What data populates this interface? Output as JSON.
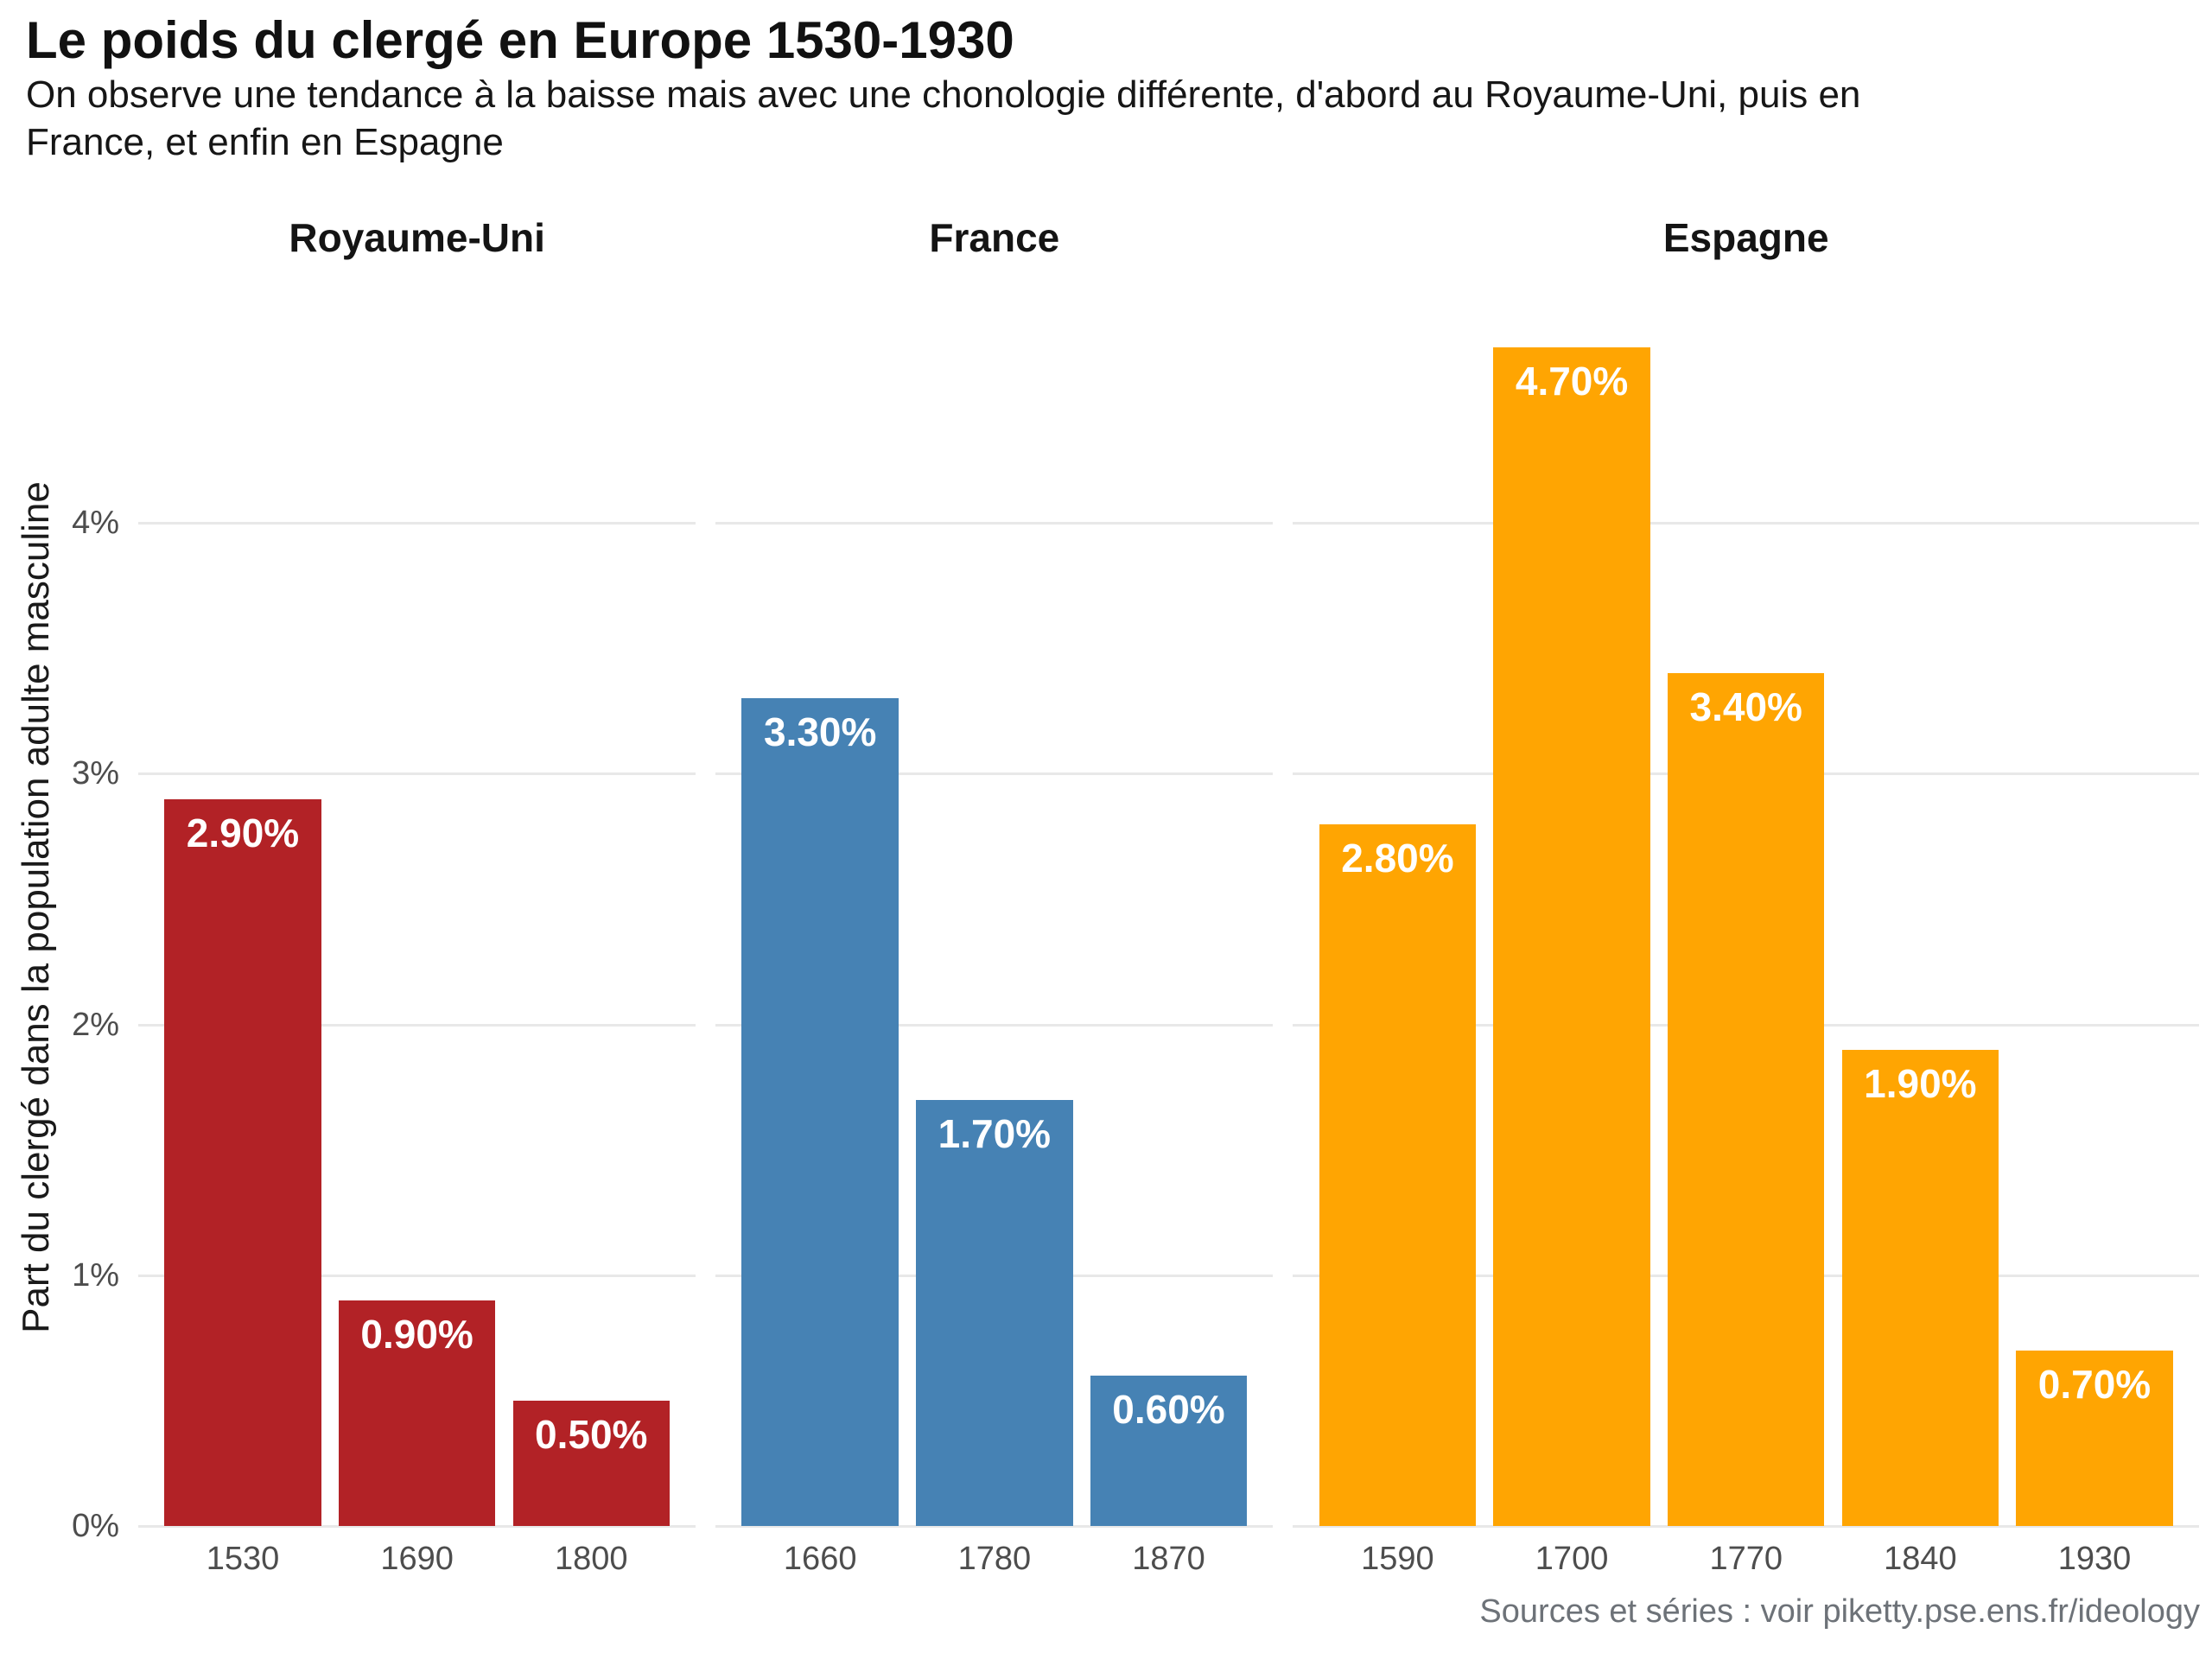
{
  "header": {
    "title": "Le poids du clergé en Europe 1530-1930",
    "subtitle_lines": [
      "On observe une tendance à la baisse mais avec une chonologie différente, d'abord au Royaume-Uni, puis en",
      "France, et enfin en Espagne"
    ]
  },
  "footer": {
    "source": "Sources et séries : voir piketty.pse.ens.fr/ideology"
  },
  "chart_data": {
    "type": "bar",
    "title": "Le poids du clergé en Europe 1530-1930",
    "subtitle": "On observe une tendance à la baisse mais avec une chonologie différente, d'abord au Royaume-Uni, puis en France, et enfin en Espagne",
    "ylabel": "Part du clergé dans la population adulte masculine",
    "xlabel": "",
    "ylim": [
      0,
      4.935
    ],
    "grid": true,
    "legend": false,
    "gridline_color": "#e8e8e8",
    "axis_text_color": "#4d4d4d",
    "yticks": [
      0,
      1,
      2,
      3,
      4
    ],
    "ytick_labels": [
      "0%",
      "1%",
      "2%",
      "3%",
      "4%"
    ],
    "panels": [
      {
        "title": "Royaume-Uni",
        "color": "#B22226",
        "categories": [
          "1530",
          "1690",
          "1800"
        ],
        "values": [
          2.9,
          0.9,
          0.5
        ],
        "value_labels": [
          "2.90%",
          "0.90%",
          "0.50%"
        ]
      },
      {
        "title": "France",
        "color": "#4682B4",
        "categories": [
          "1660",
          "1780",
          "1870"
        ],
        "values": [
          3.3,
          1.7,
          0.6
        ],
        "value_labels": [
          "3.30%",
          "1.70%",
          "0.60%"
        ]
      },
      {
        "title": "Espagne",
        "color": "#FFA502",
        "categories": [
          "1590",
          "1700",
          "1770",
          "1840",
          "1930"
        ],
        "values": [
          2.8,
          4.7,
          3.4,
          1.9,
          0.7
        ],
        "value_labels": [
          "2.80%",
          "4.70%",
          "3.40%",
          "1.90%",
          "0.70%"
        ]
      }
    ],
    "source": "Sources et séries : voir piketty.pse.ens.fr/ideology"
  }
}
